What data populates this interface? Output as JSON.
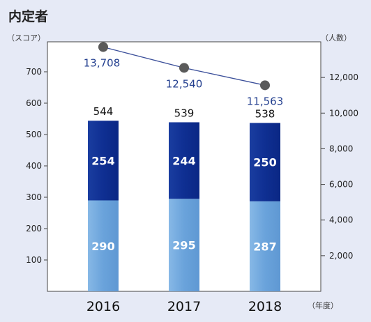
{
  "chart_data": {
    "type": "bar",
    "title": "内定者",
    "left_axis_unit": "（スコア）",
    "right_axis_unit": "（人数）",
    "x_axis_unit": "（年度）",
    "categories": [
      "2016",
      "2017",
      "2018"
    ],
    "series": [
      {
        "values": [
          290,
          295,
          287
        ],
        "color": "#6fa7dd"
      },
      {
        "values": [
          254,
          244,
          250
        ],
        "color": "#0e2d8e"
      }
    ],
    "totals": [
      "544",
      "539",
      "538"
    ],
    "bottom_labels": [
      "290",
      "295",
      "287"
    ],
    "top_labels": [
      "254",
      "244",
      "250"
    ],
    "line_series": {
      "values": [
        13708,
        12540,
        11563
      ],
      "labels": [
        "13,708",
        "12,540",
        "11,563"
      ],
      "color": "#5a5a5a",
      "label_color": "#233f8f"
    },
    "ylim_left": [
      0,
      800
    ],
    "yticks_left": [
      "100",
      "200",
      "300",
      "400",
      "500",
      "600",
      "700"
    ],
    "ylim_right": [
      0,
      14000
    ],
    "yticks_right": [
      "2,000",
      "4,000",
      "6,000",
      "8,000",
      "10,000",
      "12,000"
    ],
    "grid": false
  }
}
